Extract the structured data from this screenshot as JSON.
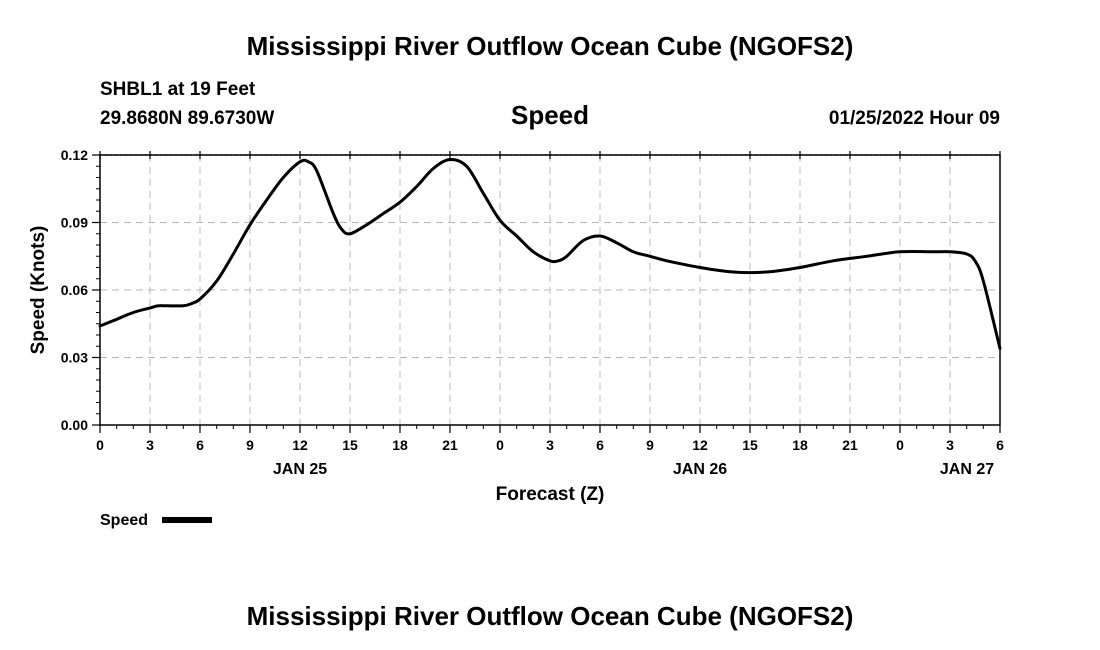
{
  "header": {
    "title": "Mississippi River Outflow Ocean Cube (NGOFS2)",
    "station": "SHBL1 at 19 Feet",
    "coords": "29.8680N  89.6730W",
    "variable": "Speed",
    "datetime": "01/25/2022 Hour 09"
  },
  "footer": {
    "title": "Mississippi River Outflow Ocean Cube (NGOFS2)"
  },
  "chart_data": {
    "type": "line",
    "ylabel": "Speed (Knots)",
    "xlabel": "Forecast (Z)",
    "ylim": [
      0,
      0.12
    ],
    "yticks": [
      "0.00",
      "0.03",
      "0.06",
      "0.09",
      "0.12"
    ],
    "xlim": [
      0,
      54
    ],
    "xtick_hours": [
      0,
      3,
      6,
      9,
      12,
      15,
      18,
      21,
      24,
      27,
      30,
      33,
      36,
      39,
      42,
      45,
      48,
      51,
      54
    ],
    "xtick_labels": [
      "0",
      "3",
      "6",
      "9",
      "12",
      "15",
      "18",
      "21",
      "0",
      "3",
      "6",
      "9",
      "12",
      "15",
      "18",
      "21",
      "0",
      "3",
      "6"
    ],
    "day_labels": [
      {
        "hour": 12,
        "label": "JAN 25"
      },
      {
        "hour": 36,
        "label": "JAN 26"
      },
      {
        "hour": 60,
        "label": "JAN 27"
      }
    ],
    "grid": true,
    "legend_position": "bottom-left",
    "series": [
      {
        "name": "Speed",
        "color": "#000000",
        "x": [
          0,
          1,
          2,
          3,
          3.5,
          4,
          5,
          5.5,
          6,
          7,
          8,
          9,
          10,
          11,
          12,
          12.5,
          13,
          14,
          14.5,
          15,
          16,
          17,
          18,
          19,
          20,
          21,
          22,
          23,
          24,
          25,
          26,
          27,
          27.5,
          28,
          29,
          30,
          31,
          32,
          33,
          34,
          36,
          38,
          40,
          42,
          44,
          46,
          48,
          50,
          51,
          52,
          52.5,
          53,
          54
        ],
        "values": [
          0.044,
          0.047,
          0.05,
          0.052,
          0.053,
          0.053,
          0.053,
          0.054,
          0.056,
          0.064,
          0.076,
          0.089,
          0.1,
          0.11,
          0.117,
          0.117,
          0.113,
          0.094,
          0.087,
          0.085,
          0.089,
          0.094,
          0.099,
          0.106,
          0.114,
          0.118,
          0.115,
          0.103,
          0.091,
          0.084,
          0.077,
          0.073,
          0.073,
          0.075,
          0.082,
          0.084,
          0.081,
          0.077,
          0.075,
          0.073,
          0.07,
          0.068,
          0.068,
          0.07,
          0.073,
          0.075,
          0.077,
          0.077,
          0.077,
          0.076,
          0.073,
          0.064,
          0.034
        ]
      }
    ]
  }
}
